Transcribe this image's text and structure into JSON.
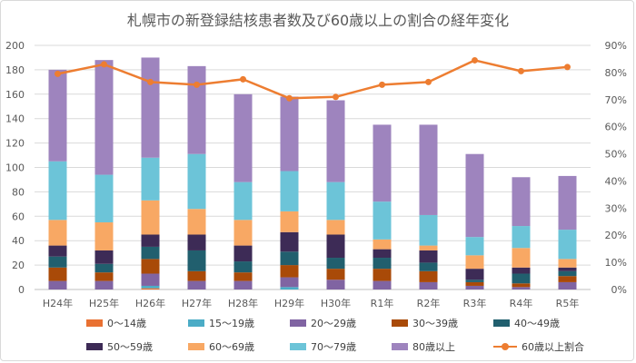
{
  "chart_data": {
    "type": "bar",
    "subtype": "stacked-bar-with-line",
    "title": "札幌市の新登録結核患者数及び60歳以上の割合の経年変化",
    "categories": [
      "H24年",
      "H25年",
      "H26年",
      "H27年",
      "H28年",
      "H29年",
      "H30年",
      "R1年",
      "R2年",
      "R3年",
      "R4年",
      "R5年"
    ],
    "ylim": [
      0,
      200
    ],
    "yticks": [
      0,
      20,
      40,
      60,
      80,
      100,
      120,
      140,
      160,
      180,
      200
    ],
    "y2lim": [
      0,
      90
    ],
    "y2ticks": [
      "0%",
      "10%",
      "20%",
      "30%",
      "40%",
      "50%",
      "60%",
      "70%",
      "80%",
      "90%"
    ],
    "grid": true,
    "legend_position": "bottom",
    "series": [
      {
        "name": "0～14歳",
        "color": "#e97132",
        "values": [
          0,
          0,
          1,
          0,
          0,
          0,
          0,
          0,
          0,
          0,
          0,
          0
        ]
      },
      {
        "name": "15～19歳",
        "color": "#4bacc6",
        "values": [
          0,
          0,
          2,
          0,
          0,
          2,
          0,
          0,
          0,
          0,
          0,
          0
        ]
      },
      {
        "name": "20～29歳",
        "color": "#8064a2",
        "values": [
          7,
          7,
          10,
          7,
          7,
          8,
          8,
          7,
          6,
          3,
          2,
          6
        ]
      },
      {
        "name": "30～39歳",
        "color": "#a94a08",
        "values": [
          11,
          7,
          12,
          8,
          7,
          10,
          9,
          10,
          9,
          3,
          3,
          5
        ]
      },
      {
        "name": "40～49歳",
        "color": "#215f6e",
        "values": [
          9,
          7,
          10,
          17,
          9,
          11,
          9,
          9,
          7,
          2,
          8,
          4
        ]
      },
      {
        "name": "50～59歳",
        "color": "#3d2b56",
        "values": [
          9,
          11,
          10,
          13,
          13,
          16,
          19,
          7,
          10,
          9,
          5,
          3
        ]
      },
      {
        "name": "60～69歳",
        "color": "#f8a864",
        "values": [
          21,
          23,
          28,
          21,
          21,
          17,
          12,
          8,
          4,
          11,
          16,
          7
        ]
      },
      {
        "name": "70～79歳",
        "color": "#6cc4d8",
        "values": [
          48,
          39,
          35,
          45,
          31,
          33,
          31,
          31,
          25,
          15,
          18,
          24
        ]
      },
      {
        "name": "80歳以上",
        "color": "#9e84be",
        "values": [
          75,
          94,
          82,
          72,
          72,
          61,
          67,
          63,
          74,
          68,
          40,
          44
        ]
      }
    ],
    "line": {
      "name": "60歳以上割合",
      "color": "#ed7d31",
      "values": [
        79.5,
        83,
        76.5,
        75.5,
        77.5,
        70.5,
        71,
        75.5,
        76.5,
        84.5,
        80.5,
        82
      ],
      "unit": "%"
    }
  }
}
